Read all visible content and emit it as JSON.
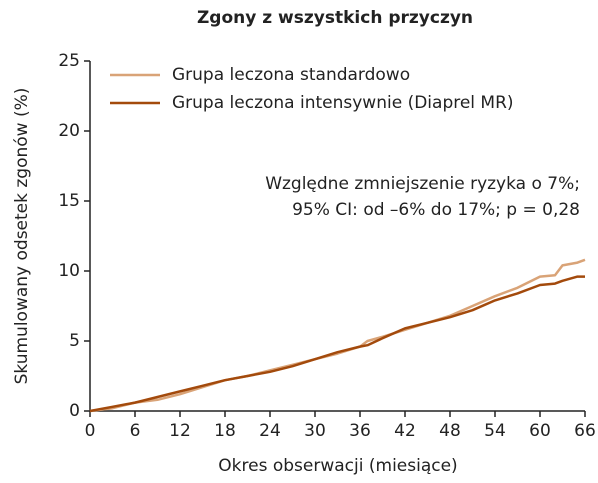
{
  "chart_data": {
    "type": "line",
    "title": "Zgony z wszystkich przyczyn",
    "xlabel": "Okres obserwacji (miesiące)",
    "ylabel": "Skumulowany odsetek zgonów (%)",
    "annotations": [
      "Względne zmniejszenie ryzyka o 7%;",
      "95% CI: od –6% do 17%; p = 0,28"
    ],
    "x": [
      0,
      3,
      6,
      9,
      12,
      15,
      18,
      21,
      24,
      27,
      30,
      33,
      36,
      37,
      39,
      42,
      45,
      48,
      51,
      54,
      57,
      60,
      62,
      63,
      65,
      66
    ],
    "series": [
      {
        "name": "Grupa leczona standardowo",
        "color": "#d9a377",
        "values": [
          0,
          0.2,
          0.6,
          0.8,
          1.2,
          1.7,
          2.2,
          2.5,
          2.9,
          3.3,
          3.7,
          4.1,
          4.6,
          5.0,
          5.3,
          5.8,
          6.3,
          6.8,
          7.5,
          8.2,
          8.8,
          9.6,
          9.7,
          10.4,
          10.6,
          10.8
        ]
      },
      {
        "name": "Grupa leczona intensywnie  (Diaprel MR)",
        "color": "#a34a0c",
        "values": [
          0,
          0.3,
          0.6,
          1.0,
          1.4,
          1.8,
          2.2,
          2.5,
          2.8,
          3.2,
          3.7,
          4.2,
          4.6,
          4.7,
          5.2,
          5.9,
          6.3,
          6.7,
          7.2,
          7.9,
          8.4,
          9.0,
          9.1,
          9.3,
          9.6,
          9.6
        ]
      }
    ],
    "xlim": [
      0,
      66
    ],
    "xticks": [
      0,
      6,
      12,
      18,
      24,
      30,
      36,
      42,
      48,
      54,
      60,
      66
    ],
    "ylim": [
      0,
      25
    ],
    "yticks": [
      0,
      5,
      10,
      15,
      20,
      25
    ],
    "legend": "upper left"
  }
}
